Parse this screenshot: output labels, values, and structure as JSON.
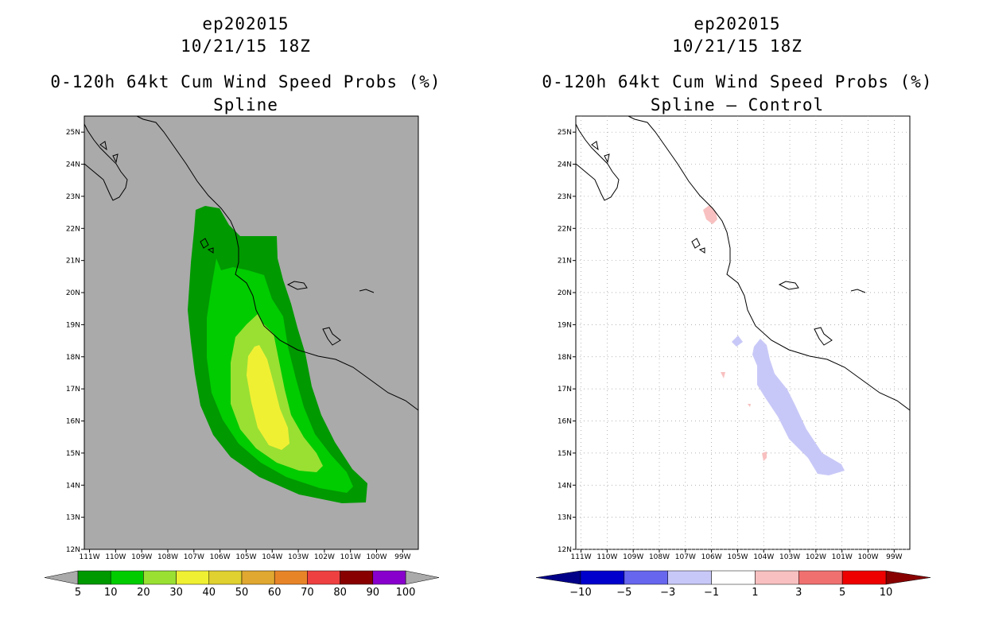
{
  "left_panel": {
    "title_lines": [
      "ep202015",
      "10/21/15 18Z",
      "0-120h 64kt Cum Wind Speed Probs (%)",
      "Spline"
    ],
    "colorbar": {
      "colors": [
        "#009900",
        "#00cc00",
        "#99e033",
        "#f0f033",
        "#e0d030",
        "#e0a830",
        "#e88428",
        "#ee4040",
        "#880000",
        "#8800cc"
      ],
      "labels": [
        "5",
        "10",
        "20",
        "30",
        "40",
        "50",
        "60",
        "70",
        "80",
        "90",
        "100"
      ],
      "end_arrow_color": "#aaaaaa"
    }
  },
  "right_panel": {
    "title_lines": [
      "ep202015",
      "10/21/15 18Z",
      "0-120h 64kt Cum Wind Speed Probs (%)",
      "Spline – Control"
    ],
    "colorbar": {
      "colors": [
        "#0000cc",
        "#6666ee",
        "#c8c8f8",
        "#ffffff",
        "#f8c0c0",
        "#f07070",
        "#ee0000"
      ],
      "labels": [
        "−10",
        "−5",
        "−3",
        "−1",
        "1",
        "3",
        "5",
        "10"
      ],
      "low_arrow_color": "#000088",
      "high_arrow_color": "#880000"
    }
  },
  "map_axes": {
    "lon_labels": [
      "111W",
      "110W",
      "109W",
      "108W",
      "107W",
      "106W",
      "105W",
      "104W",
      "103W",
      "102W",
      "101W",
      "100W",
      "99W"
    ],
    "lat_labels": [
      "12N",
      "13N",
      "14N",
      "15N",
      "16N",
      "17N",
      "18N",
      "19N",
      "20N",
      "21N",
      "22N",
      "23N",
      "24N",
      "25N"
    ],
    "lon_range_deg_w": [
      111.2,
      98.4
    ],
    "lat_range_deg_n": [
      12.0,
      25.5
    ],
    "left_background": "#aaaaaa",
    "right_background": "#ffffff",
    "right_grid": "dotted"
  }
}
